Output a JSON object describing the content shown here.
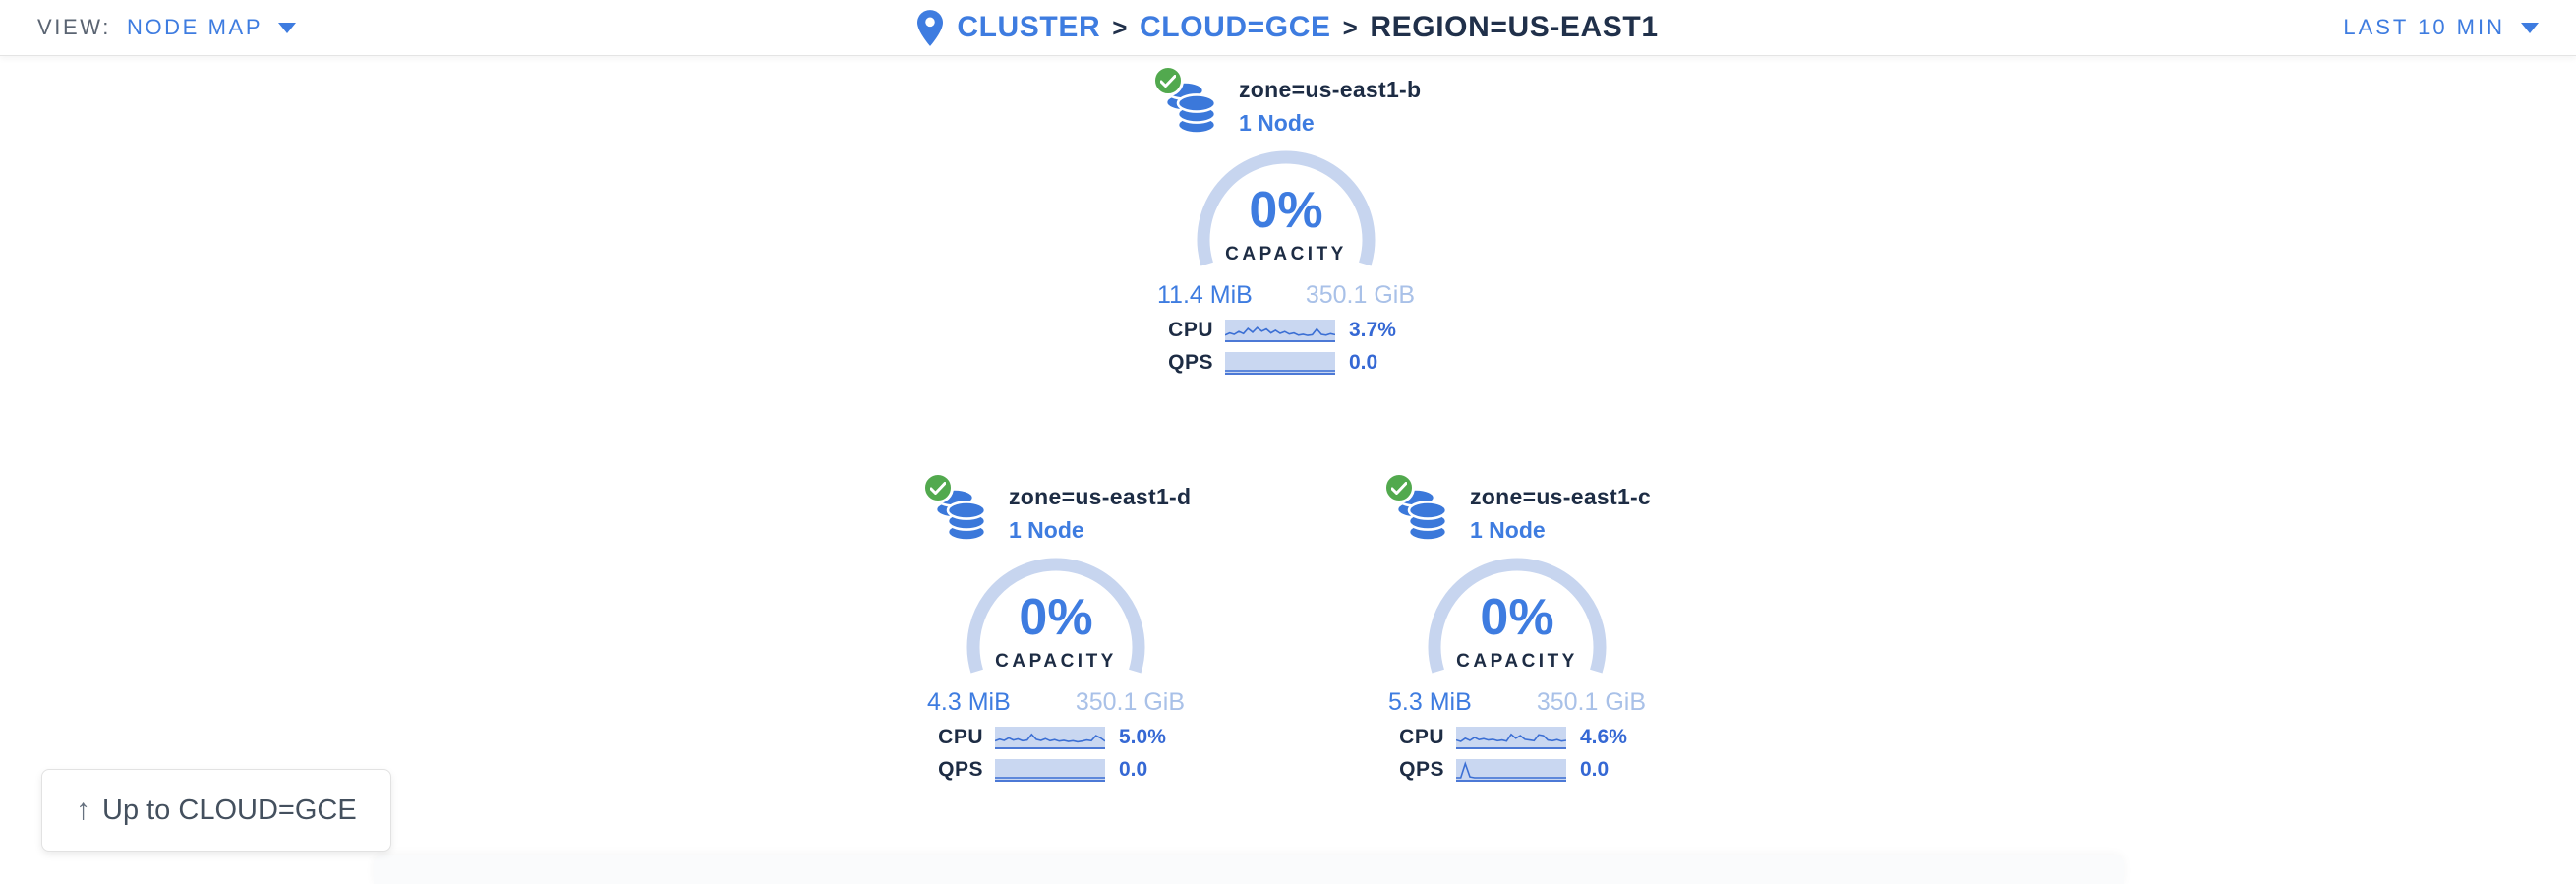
{
  "header": {
    "view_label": "VIEW:",
    "view_value": "NODE MAP",
    "breadcrumb_separator": ">",
    "breadcrumb": [
      {
        "label": "CLUSTER"
      },
      {
        "label": "CLOUD=GCE"
      },
      {
        "label": "REGION=US-EAST1"
      }
    ],
    "time_range": "LAST 10 MIN"
  },
  "zones": [
    {
      "name": "zone=us-east1-b",
      "nodes": "1 Node",
      "capacity_pct": "0%",
      "capacity_label": "CAPACITY",
      "capacity_used": "11.4 MiB",
      "capacity_total": "350.1 GiB",
      "cpu_label": "CPU",
      "cpu_value": "3.7%",
      "qps_label": "QPS",
      "qps_value": "0.0",
      "cpu_spark": [
        0.18,
        0.3,
        0.22,
        0.38,
        0.26,
        0.55,
        0.34,
        0.6,
        0.4,
        0.52,
        0.3,
        0.45,
        0.28,
        0.38,
        0.24,
        0.3,
        0.18,
        0.22,
        0.16,
        0.2,
        0.52,
        0.22,
        0.18,
        0.26,
        0.2
      ],
      "qps_spark": [
        0,
        0,
        0,
        0,
        0,
        0,
        0,
        0,
        0,
        0,
        0,
        0,
        0,
        0,
        0,
        0,
        0,
        0,
        0,
        0,
        0,
        0,
        0,
        0,
        0
      ]
    },
    {
      "name": "zone=us-east1-d",
      "nodes": "1 Node",
      "capacity_pct": "0%",
      "capacity_label": "CAPACITY",
      "capacity_used": "4.3 MiB",
      "capacity_total": "350.1 GiB",
      "cpu_label": "CPU",
      "cpu_value": "5.0%",
      "qps_label": "QPS",
      "qps_value": "0.0",
      "cpu_spark": [
        0.25,
        0.35,
        0.28,
        0.42,
        0.3,
        0.36,
        0.26,
        0.3,
        0.62,
        0.34,
        0.28,
        0.38,
        0.26,
        0.32,
        0.24,
        0.28,
        0.22,
        0.26,
        0.2,
        0.24,
        0.3,
        0.26,
        0.55,
        0.42,
        0.24
      ],
      "qps_spark": [
        0,
        0,
        0,
        0,
        0,
        0,
        0,
        0,
        0,
        0,
        0,
        0,
        0,
        0,
        0,
        0,
        0,
        0,
        0,
        0,
        0,
        0,
        0,
        0,
        0
      ]
    },
    {
      "name": "zone=us-east1-c",
      "nodes": "1 Node",
      "capacity_pct": "0%",
      "capacity_label": "CAPACITY",
      "capacity_used": "5.3 MiB",
      "capacity_total": "350.1 GiB",
      "cpu_label": "CPU",
      "cpu_value": "4.6%",
      "qps_label": "QPS",
      "qps_value": "0.0",
      "cpu_spark": [
        0.3,
        0.22,
        0.4,
        0.28,
        0.45,
        0.32,
        0.38,
        0.3,
        0.34,
        0.26,
        0.3,
        0.24,
        0.62,
        0.4,
        0.55,
        0.34,
        0.3,
        0.26,
        0.6,
        0.55,
        0.3,
        0.26,
        0.32,
        0.24,
        0.28
      ],
      "qps_spark": [
        0,
        0,
        0.8,
        0.05,
        0,
        0,
        0,
        0,
        0,
        0,
        0,
        0,
        0,
        0,
        0,
        0,
        0,
        0,
        0,
        0,
        0,
        0,
        0,
        0,
        0
      ]
    }
  ],
  "up_button": {
    "label": "Up to CLOUD=GCE"
  },
  "colors": {
    "accent_blue": "#3e7ce0",
    "value_blue": "#3568d4",
    "dark_navy": "#1d2c44",
    "arc_light_blue": "#c7d5ef",
    "spark_bg": "#c9d7f1",
    "spark_line": "#3b6fd4",
    "healthy_green": "#52a94e"
  }
}
